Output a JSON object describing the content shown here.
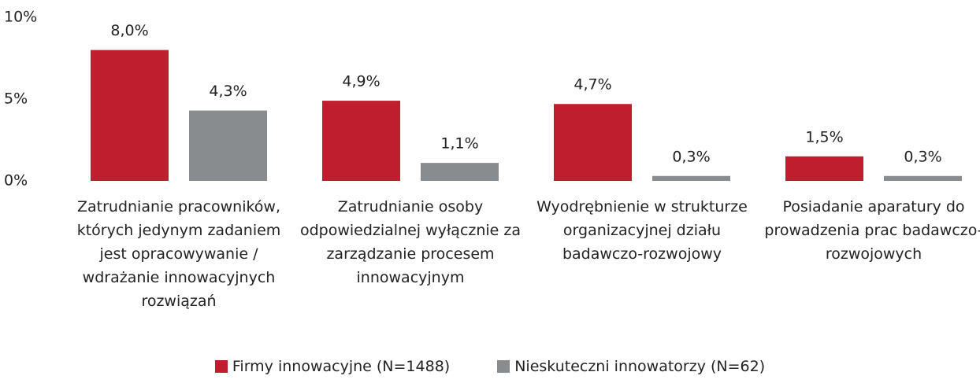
{
  "chart_data": {
    "type": "bar",
    "categories": [
      "Zatrudnianie pracowników, których jedynym zadaniem jest opracowywanie / wdrażanie innowacyjnych rozwiązań",
      "Zatrudnianie osoby odpowiedzialnej wyłącznie za zarządzanie procesem innowacyjnym",
      "Wyodrębnienie w strukturze organizacyjnej działu badawczo-rozwojowy",
      "Posiadanie aparatury do prowadzenia prac badawczo-rozwojowych"
    ],
    "series": [
      {
        "name": "Firmy innowacyjne (N=1488)",
        "color": "#be1e2d",
        "values": [
          8.0,
          4.9,
          4.7,
          1.5
        ],
        "value_labels": [
          "8,0%",
          "4,9%",
          "4,7%",
          "1,5%"
        ]
      },
      {
        "name": "Nieskuteczni innowatorzy (N=62)",
        "color": "#898c8e",
        "values": [
          4.3,
          1.1,
          0.3,
          0.3
        ],
        "value_labels": [
          "4,3%",
          "1,1%",
          "0,3%",
          "0,3%"
        ]
      }
    ],
    "ylim": [
      0,
      10
    ],
    "yticks": [
      {
        "value": 0,
        "label": "0%"
      },
      {
        "value": 5,
        "label": "5%"
      },
      {
        "value": 10,
        "label": "10%"
      }
    ],
    "grid": false,
    "legend": "bottom"
  }
}
